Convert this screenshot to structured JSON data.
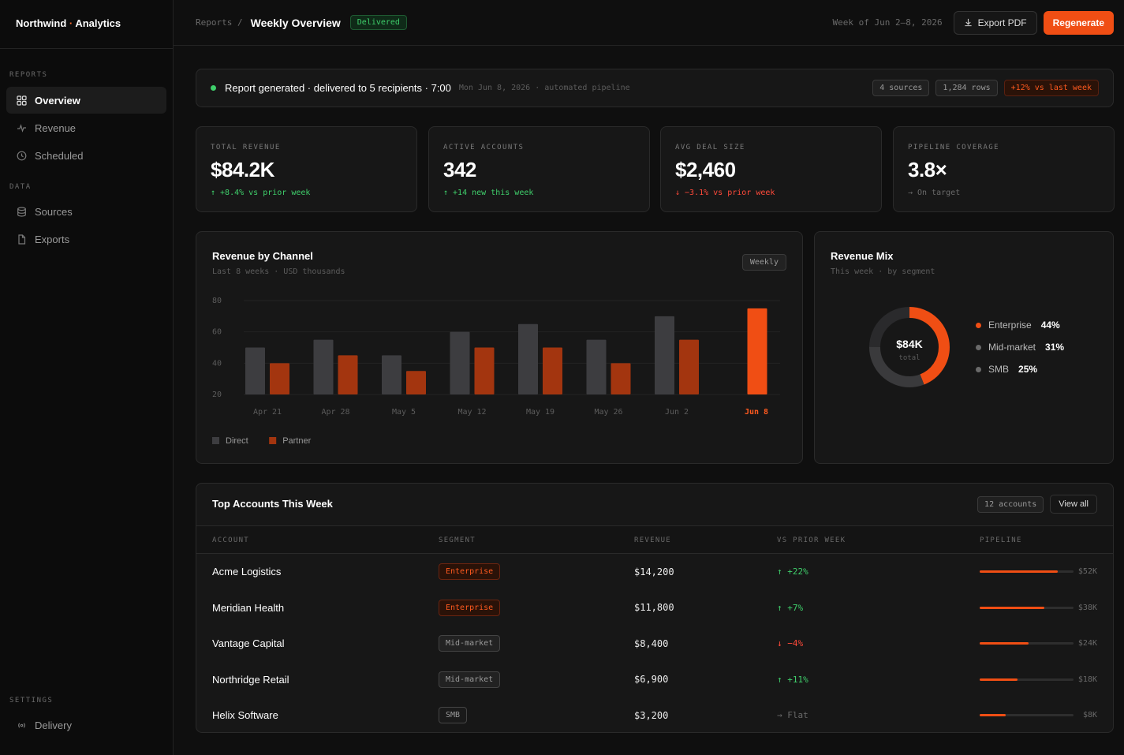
{
  "brand": {
    "name": "Northwind",
    "sep": " · ",
    "suffix": "Analytics"
  },
  "sidebar": {
    "reports_label": "REPORTS",
    "data_label": "DATA",
    "settings_label": "SETTINGS",
    "items": [
      {
        "label": "Overview",
        "icon": "grid-icon",
        "active": true
      },
      {
        "label": "Revenue",
        "icon": "pulse-icon"
      },
      {
        "label": "Scheduled",
        "icon": "clock-icon"
      },
      {
        "label": "Sources",
        "icon": "database-icon"
      },
      {
        "label": "Exports",
        "icon": "file-icon"
      },
      {
        "label": "Delivery",
        "icon": "broadcast-icon"
      }
    ]
  },
  "header": {
    "crumb": "Reports /",
    "title": "Weekly Overview",
    "badge": "Delivered",
    "week_of": "Week of Jun 2–8, 2026",
    "export_label": "Export PDF",
    "regenerate_label": "Regenerate"
  },
  "status": {
    "text": "Report generated · delivered to 5 recipients · 7:00",
    "meta": "Mon Jun 8, 2026 · automated pipeline",
    "chips": [
      "4 sources",
      "1,284 rows",
      "+12% vs last week"
    ]
  },
  "kpis": [
    {
      "label": "TOTAL REVENUE",
      "value": "$84.2K",
      "delta": "↑ +8.4% vs prior week",
      "trend": "up"
    },
    {
      "label": "ACTIVE ACCOUNTS",
      "value": "342",
      "delta": "↑ +14 new this week",
      "trend": "up"
    },
    {
      "label": "AVG DEAL SIZE",
      "value": "$2,460",
      "delta": "↓ −3.1% vs prior week",
      "trend": "down"
    },
    {
      "label": "PIPELINE COVERAGE",
      "value": "3.8×",
      "delta": "→ On target",
      "trend": "flat"
    }
  ],
  "revenue_chart": {
    "title": "Revenue by Channel",
    "subtitle": "Last 8 weeks · USD thousands",
    "period_chip": "Weekly"
  },
  "chart_data": [
    {
      "type": "bar",
      "title": "Revenue by Channel",
      "subtitle": "Last 8 weeks · USD thousands",
      "categories": [
        "Apr 21",
        "Apr 28",
        "May 5",
        "May 12",
        "May 19",
        "May 26",
        "Jun 2",
        "Jun 8"
      ],
      "series": [
        {
          "name": "Direct",
          "values": [
            50,
            55,
            45,
            60,
            65,
            55,
            70,
            null
          ],
          "color": "#3d3d40"
        },
        {
          "name": "Partner",
          "values": [
            40,
            45,
            35,
            50,
            50,
            40,
            55,
            75
          ],
          "color": "#a3350f"
        }
      ],
      "highlight_color": "#f04e14",
      "yticks": [
        20,
        40,
        60,
        80
      ],
      "ylim": [
        20,
        80
      ],
      "grid": true,
      "legend": "bottom-left"
    },
    {
      "type": "pie",
      "title": "Revenue Mix",
      "subtitle": "This week · by segment",
      "center_value": "$84K",
      "center_label": "total",
      "labels": [
        "Enterprise",
        "Mid-market",
        "SMB"
      ],
      "values": [
        44,
        31,
        25
      ],
      "display": [
        "44%",
        "31%",
        "25%"
      ],
      "colors": [
        "#f04e14",
        "#3a3a3c",
        "#2a2a2c"
      ],
      "legend": "right"
    }
  ],
  "mix": {
    "title": "Revenue Mix",
    "subtitle": "This week · by segment"
  },
  "table": {
    "title": "Top Accounts This Week",
    "count_chip": "12 accounts",
    "view_all": "View all",
    "columns": [
      "ACCOUNT",
      "SEGMENT",
      "REVENUE",
      "VS PRIOR WEEK",
      "PIPELINE"
    ],
    "rows": [
      {
        "account": "Acme Logistics",
        "segment": "Enterprise",
        "seg_kind": "ent",
        "revenue": "$14,200",
        "delta": "↑ +22%",
        "trend": "up",
        "pipeline": 0.83,
        "pipeline_label": "$52K"
      },
      {
        "account": "Meridian Health",
        "segment": "Enterprise",
        "seg_kind": "ent",
        "revenue": "$11,800",
        "delta": "↑ +7%",
        "trend": "up",
        "pipeline": 0.69,
        "pipeline_label": "$38K"
      },
      {
        "account": "Vantage Capital",
        "segment": "Mid-market",
        "seg_kind": "mid",
        "revenue": "$8,400",
        "delta": "↓ −4%",
        "trend": "down",
        "pipeline": 0.52,
        "pipeline_label": "$24K"
      },
      {
        "account": "Northridge Retail",
        "segment": "Mid-market",
        "seg_kind": "mid",
        "revenue": "$6,900",
        "delta": "↑ +11%",
        "trend": "up",
        "pipeline": 0.4,
        "pipeline_label": "$18K"
      },
      {
        "account": "Helix Software",
        "segment": "SMB",
        "seg_kind": "smb",
        "revenue": "$3,200",
        "delta": "→ Flat",
        "trend": "flat",
        "pipeline": 0.28,
        "pipeline_label": "$8K"
      }
    ]
  }
}
